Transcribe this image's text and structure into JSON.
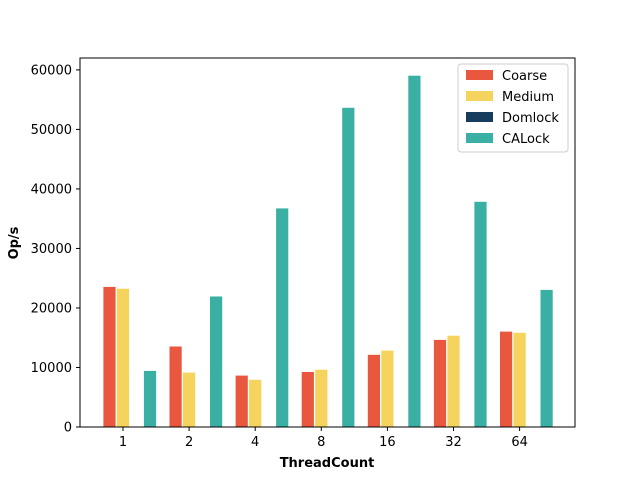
{
  "chart_data": {
    "type": "bar",
    "title": "",
    "xlabel": "ThreadCount",
    "ylabel": "Op/s",
    "categories": [
      "1",
      "2",
      "4",
      "8",
      "16",
      "32",
      "64"
    ],
    "ylim": [
      0,
      62000
    ],
    "yticks": [
      "0",
      "10000",
      "20000",
      "30000",
      "40000",
      "50000",
      "60000"
    ],
    "ytick_values": [
      0,
      10000,
      20000,
      30000,
      40000,
      50000,
      60000
    ],
    "grid": false,
    "legend_position": "top-right",
    "series": [
      {
        "name": "Coarse",
        "color": "#e9573f",
        "values": [
          23600,
          13600,
          8700,
          9300,
          12200,
          14700,
          16100
        ]
      },
      {
        "name": "Medium",
        "color": "#f6d35c",
        "values": [
          23300,
          9200,
          8000,
          9700,
          12900,
          15400,
          15900
        ]
      },
      {
        "name": "Domlock",
        "color": "#163c5e",
        "values": [
          0,
          0,
          0,
          0,
          0,
          0,
          0
        ]
      },
      {
        "name": "CALock",
        "color": "#3aafa3",
        "values": [
          9500,
          22000,
          36800,
          53700,
          59100,
          37900,
          23100
        ]
      }
    ]
  }
}
